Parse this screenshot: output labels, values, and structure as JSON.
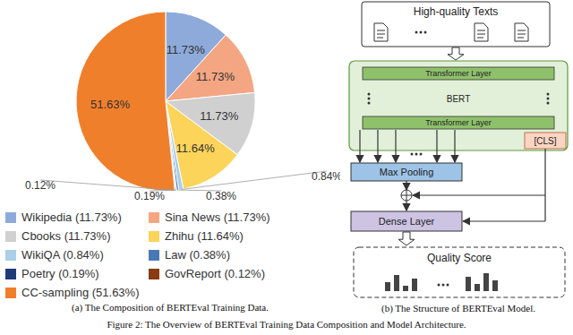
{
  "chart_data": {
    "type": "pie",
    "title": "(a) The Composition of BERTEval Training Data.",
    "categories": [
      "Wikipedia (11.73%)",
      "Sina News (11.73%)",
      "Cbooks (11.73%)",
      "Zhihu (11.64%)",
      "WikiQA (0.84%)",
      "Law (0.38%)",
      "Poetry (0.19%)",
      "GovReport (0.12%)",
      "CC-sampling (51.63%)"
    ],
    "values": [
      11.73,
      11.73,
      11.73,
      11.64,
      0.84,
      0.38,
      0.19,
      0.12,
      51.63
    ],
    "value_labels": [
      "11.73%",
      "11.73%",
      "11.73%",
      "11.64%",
      "0.84%",
      "0.38%",
      "0.19%",
      "0.12%",
      "51.63%"
    ],
    "colors": [
      "#8eaadb",
      "#f4a582",
      "#d0d0d0",
      "#fcd45a",
      "#a9cfe9",
      "#4a78b4",
      "#1f3a78",
      "#8a3b12",
      "#f07f2c"
    ],
    "data_labels": true,
    "legend": "bottom"
  },
  "diagram": {
    "input": "High-quality Texts",
    "encoder": "BERT",
    "layers": [
      "Transformer Layer",
      "Transformer Layer"
    ],
    "cls": "[CLS]",
    "pooling": "Max Pooling",
    "dense": "Dense Layer",
    "output": "Quality Score",
    "caption": "(b) The Structure of BERTEval Model."
  },
  "caption": "Figure 2: The Overview of BERTEval Training Data Composition and Model Architecture."
}
